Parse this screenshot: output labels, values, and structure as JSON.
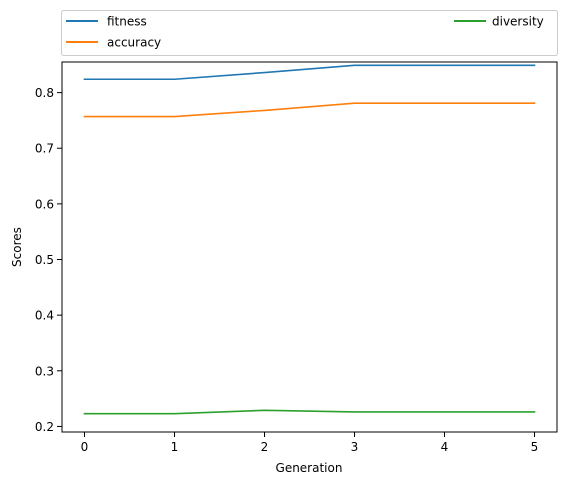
{
  "chart_data": {
    "type": "line",
    "title": "",
    "xlabel": "Generation",
    "ylabel": "Scores",
    "x": [
      0,
      1,
      2,
      3,
      4,
      5
    ],
    "xticks": [
      "0",
      "1",
      "2",
      "3",
      "4",
      "5"
    ],
    "yticks": [
      "0.2",
      "0.3",
      "0.4",
      "0.5",
      "0.6",
      "0.7",
      "0.8"
    ],
    "xlim": [
      -0.25,
      5.25
    ],
    "ylim": [
      0.19,
      0.855
    ],
    "grid": false,
    "legend_placement": "top, above plot, two columns",
    "series": [
      {
        "name": "fitness",
        "color": "#1f77b4",
        "values": [
          0.824,
          0.824,
          0.836,
          0.849,
          0.849,
          0.849
        ]
      },
      {
        "name": "accuracy",
        "color": "#ff7f0e",
        "values": [
          0.757,
          0.757,
          0.768,
          0.781,
          0.781,
          0.781
        ]
      },
      {
        "name": "diversity",
        "color": "#2ca02c",
        "values": [
          0.223,
          0.223,
          0.229,
          0.226,
          0.226,
          0.226
        ]
      }
    ]
  }
}
